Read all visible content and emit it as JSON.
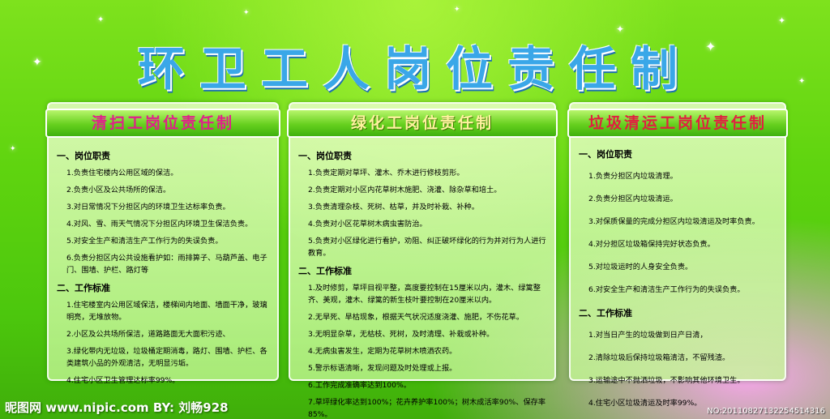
{
  "title": "环卫工人岗位责任制",
  "panels": [
    {
      "heading": "清扫工岗位责任制",
      "sections": [
        {
          "title": "一、岗位职责",
          "items": [
            "1.负责住宅楼内公用区域的保洁。",
            "2.负责小区及公共场所的保洁。",
            "3.对日常情况下分担区内的环境卫生达标率负责。",
            "4.对风、雪、雨天气情况下分担区内环境卫生保洁负责。",
            "5.对安全生产和清洁生产工作行为的失误负责。",
            "6.负责分担区内公共设施看护如：雨排箅子、马葫芦盖、电子门、围墙、护栏、路灯等"
          ]
        },
        {
          "title": "二、工作标准",
          "items": [
            "1.住宅楼室内公用区域保洁，楼梯间内地面、墙面干净，玻璃明亮，无堆放物。",
            "2.小区及公共场所保洁，道路路面无大面积污迹、",
            "3.绿化带内无垃圾，垃圾桶定期消毒，路灯、围墙、护栏、各类建筑小品的外观清洁，无明显污垢。",
            "4.住宅小区卫生管理达标率99%。"
          ]
        }
      ]
    },
    {
      "heading": "绿化工岗位责任制",
      "sections": [
        {
          "title": "一、岗位职责",
          "items": [
            "1.负责定期对草坪、灌木、乔木进行修枝剪形。",
            "2.负责定期对小区内花草树木施肥、浇灌、除杂草和培土。",
            "3.负责清理杂枝、死树、枯草，并及时补栽、补种。",
            "4.负责对小区花草树木病虫害防治。",
            "5.负责对小区绿化进行看护，劝阻、纠正破坏绿化的行为并对行为人进行教育。"
          ]
        },
        {
          "title": "二、工作标准",
          "items": [
            "1.及时修剪，草坪目视平整，高度要控制在15厘米以内，灌木、绿篱整齐、美观，灌木、绿篱的新生枝叶要控制在20厘米以内。",
            "2.无旱死、旱枯现象，根据天气状况适度浇灌、施肥，不伤花草。",
            "3.无明显杂草，无枯枝、死树，及时清理、补栽或补种。",
            "4.无病虫害发生，定期为花草树木喷洒农药。",
            "5.警示标语清晰，发现问题及时处理或上报。",
            "6.工作完成准确率达到100%。",
            "7.草坪绿化率达到100%；花卉养护率100%；树木成活率90%、保存率85%。"
          ]
        }
      ]
    },
    {
      "heading": "垃圾清运工岗位责任制",
      "sections": [
        {
          "title": "一、岗位职责",
          "items": [
            "1.负责分担区内垃圾清理。",
            "2.负责分担区内垃圾清运。",
            "3.对保质保量的完成分担区内垃圾清运及时率负责。",
            "4.对分担区垃圾箱保持完好状态负责。",
            "5.对垃圾运时的人身安全负责。",
            "6.对安全生产和清洁生产工作行为的失误负责。"
          ]
        },
        {
          "title": "二、工作标准",
          "items": [
            "1.对当日产生的垃圾做到日产日清，",
            "2.清除垃圾后保持垃圾箱清洁，不留残渣。",
            "3.运输途中不抛洒垃圾，不影响其他环境卫生。",
            "4.住宅小区垃圾清运及时率99%。"
          ]
        }
      ]
    }
  ],
  "footer": {
    "left": "昵图网 www.nipic.com BY: 刘畅928",
    "right": "NO:20110827132254514316"
  }
}
